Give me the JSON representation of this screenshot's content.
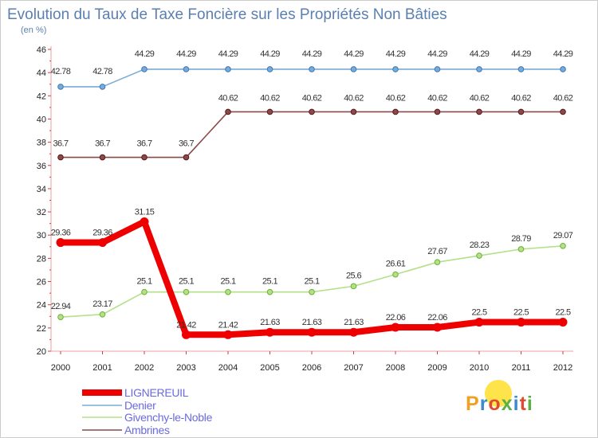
{
  "chart_data": {
    "type": "line",
    "title": "Evolution du Taux de Taxe Foncière sur les Propriétés Non Bâties",
    "subtitle": "(en %)",
    "xlabel": "",
    "ylabel": "",
    "categories": [
      "2000",
      "2001",
      "2002",
      "2003",
      "2004",
      "2005",
      "2006",
      "2007",
      "2008",
      "2009",
      "2010",
      "2011",
      "2012"
    ],
    "ylim": [
      20,
      46
    ],
    "ytick_step": 2,
    "grid": false,
    "legend_position": "bottom-left",
    "series": [
      {
        "name": "LIGNEREUIL",
        "color": "#ee0000",
        "values": [
          29.36,
          29.36,
          31.15,
          21.42,
          21.42,
          21.63,
          21.63,
          21.63,
          22.06,
          22.06,
          22.5,
          22.5,
          22.5
        ],
        "labels": [
          "29.36",
          "29.36",
          "31.15",
          "21.42",
          "21.42",
          "21.63",
          "21.63",
          "21.63",
          "22.06",
          "22.06",
          "22.5",
          "22.5",
          "22.5"
        ]
      },
      {
        "name": "Denier",
        "color": "#7aaad8",
        "values": [
          42.78,
          42.78,
          44.29,
          44.29,
          44.29,
          44.29,
          44.29,
          44.29,
          44.29,
          44.29,
          44.29,
          44.29,
          44.29
        ],
        "labels": [
          "42.78",
          "42.78",
          "44.29",
          "44.29",
          "44.29",
          "44.29",
          "44.29",
          "44.29",
          "44.29",
          "44.29",
          "44.29",
          "44.29",
          "44.29"
        ]
      },
      {
        "name": "Givenchy-le-Noble",
        "color": "#b4e08a",
        "values": [
          22.94,
          23.17,
          25.1,
          25.1,
          25.1,
          25.1,
          25.1,
          25.6,
          26.61,
          27.67,
          28.23,
          28.79,
          29.07
        ],
        "labels": [
          "22.94",
          "23.17",
          "25.1",
          "25.1",
          "25.1",
          "25.1",
          "25.1",
          "25.6",
          "26.61",
          "27.67",
          "28.23",
          "28.79",
          "29.07"
        ]
      },
      {
        "name": "Ambrines",
        "color": "#8a4a4a",
        "values": [
          36.7,
          36.7,
          36.7,
          36.7,
          40.62,
          40.62,
          40.62,
          40.62,
          40.62,
          40.62,
          40.62,
          40.62,
          40.62
        ],
        "labels": [
          "36.7",
          "36.7",
          "36.7",
          "36.7",
          "40.62",
          "40.62",
          "40.62",
          "40.62",
          "40.62",
          "40.62",
          "40.62",
          "40.62",
          "40.62"
        ]
      }
    ]
  },
  "logo": {
    "text": "Proxiti",
    "letter_colors": [
      "#f0a020",
      "#3a8ad0",
      "#e04a30",
      "#5ab040",
      "#3a8ad0",
      "#e04a30",
      "#5ab040"
    ]
  }
}
